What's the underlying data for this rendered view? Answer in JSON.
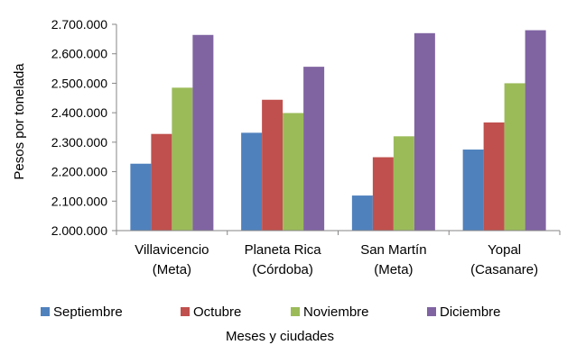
{
  "chart_data": {
    "type": "bar",
    "title": "",
    "xlabel": "Meses y ciudades",
    "ylabel": "Pesos por tonelada",
    "ylim": [
      2000000,
      2700000
    ],
    "yticks": [
      2000000,
      2100000,
      2200000,
      2300000,
      2400000,
      2500000,
      2600000,
      2700000
    ],
    "ytick_labels": [
      "2.000.000",
      "2.100.000",
      "2.200.000",
      "2.300.000",
      "2.400.000",
      "2.500.000",
      "2.600.000",
      "2.700.000"
    ],
    "categories": [
      [
        "Villavicencio",
        "(Meta)"
      ],
      [
        "Planeta Rica",
        "(Córdoba)"
      ],
      [
        "San Martín",
        "(Meta)"
      ],
      [
        "Yopal",
        "(Casanare)"
      ]
    ],
    "series": [
      {
        "name": "Septiembre",
        "color": "#4F81BD",
        "values": [
          2227000,
          2332000,
          2119000,
          2275000
        ]
      },
      {
        "name": "Octubre",
        "color": "#C0504D",
        "values": [
          2328000,
          2444000,
          2249000,
          2367000
        ]
      },
      {
        "name": "Noviembre",
        "color": "#9BBB59",
        "values": [
          2485000,
          2399000,
          2320000,
          2500000
        ]
      },
      {
        "name": "Diciembre",
        "color": "#8064A2",
        "values": [
          2664000,
          2556000,
          2670000,
          2680000
        ]
      }
    ],
    "grid": false,
    "legend_position": "bottom"
  }
}
